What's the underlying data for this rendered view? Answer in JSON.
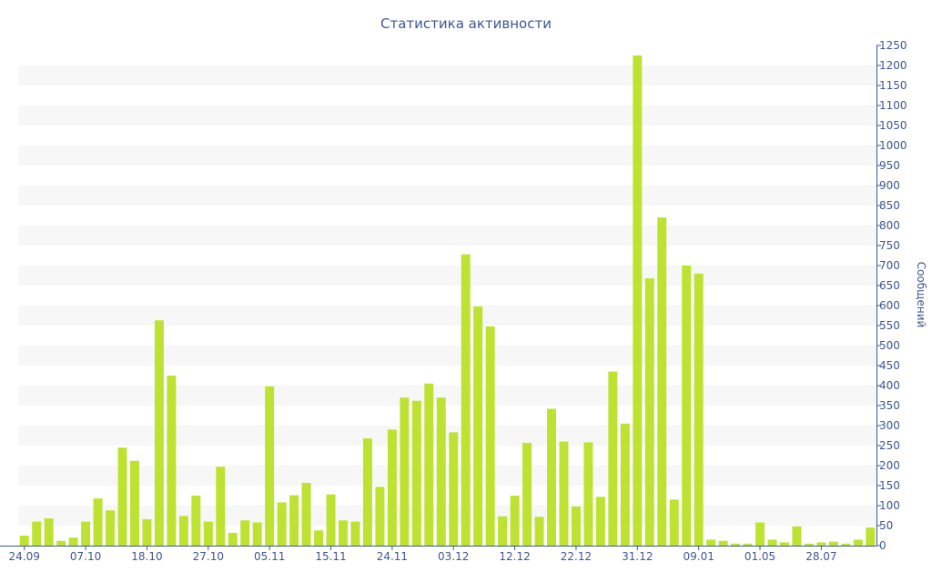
{
  "chart_data": {
    "type": "bar",
    "title": "Статистика активности",
    "ylabel": "Сообщений",
    "ylim": [
      0,
      1250
    ],
    "ytick_step": 50,
    "grid": "horizontal-bands",
    "colors": {
      "bar": "#bde232",
      "band": "#f7f7f7",
      "text": "#3e5793",
      "axis": "#3e5793"
    },
    "x_tick_labels": [
      {
        "index": 0,
        "label": "24.09"
      },
      {
        "index": 5,
        "label": "07.10"
      },
      {
        "index": 10,
        "label": "18.10"
      },
      {
        "index": 15,
        "label": "27.10"
      },
      {
        "index": 20,
        "label": "05.11"
      },
      {
        "index": 25,
        "label": "15.11"
      },
      {
        "index": 30,
        "label": "24.11"
      },
      {
        "index": 35,
        "label": "03.12"
      },
      {
        "index": 40,
        "label": "12.12"
      },
      {
        "index": 45,
        "label": "22.12"
      },
      {
        "index": 50,
        "label": "31.12"
      },
      {
        "index": 55,
        "label": "09.01"
      },
      {
        "index": 60,
        "label": "01.05"
      },
      {
        "index": 65,
        "label": "28.07"
      }
    ],
    "values": [
      25,
      60,
      68,
      12,
      20,
      60,
      118,
      88,
      245,
      212,
      66,
      563,
      425,
      74,
      125,
      60,
      197,
      32,
      63,
      58,
      398,
      108,
      126,
      157,
      38,
      128,
      63,
      60,
      268,
      147,
      290,
      370,
      362,
      405,
      370,
      283,
      728,
      598,
      548,
      73,
      125,
      257,
      72,
      342,
      260,
      98,
      258,
      122,
      435,
      305,
      1225,
      668,
      820,
      115,
      700,
      680,
      15,
      12,
      5,
      5,
      58,
      15,
      8,
      48,
      5,
      8,
      10,
      5,
      15,
      45
    ]
  }
}
